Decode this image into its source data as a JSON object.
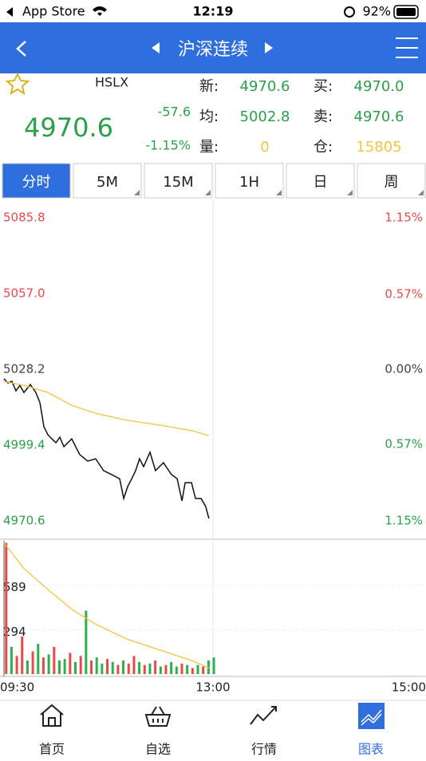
{
  "status_bar": {
    "carrier": "App Store",
    "time": "12:19",
    "battery": "92%"
  },
  "nav": {
    "title": "沪深连续"
  },
  "quote": {
    "symbol": "HSLX",
    "price": "4970.6",
    "change": "-57.6",
    "change_pct": "-1.15%",
    "fields": [
      {
        "label": "新:",
        "value": "4970.6",
        "color": "#2aa148"
      },
      {
        "label": "均:",
        "value": "5002.8",
        "color": "#2aa148"
      },
      {
        "label": "量:",
        "value": "0",
        "color": "#f3c441"
      },
      {
        "label": "买:",
        "value": "4970.0",
        "color": "#2aa148"
      },
      {
        "label": "卖:",
        "value": "4970.6",
        "color": "#2aa148"
      },
      {
        "label": "仓:",
        "value": "15805",
        "color": "#f3c441"
      }
    ]
  },
  "tabs": [
    "分时",
    "5M",
    "15M",
    "1H",
    "日",
    "周"
  ],
  "active_tab": 0,
  "chart_data": [
    {
      "type": "line",
      "xlim": [
        0,
        240
      ],
      "xticks": [
        {
          "value": 0,
          "label": "09:30"
        },
        {
          "value": 120,
          "label": "13:00"
        },
        {
          "value": 240,
          "label": "15:00"
        }
      ],
      "ylim": [
        4970.6,
        5085.8
      ],
      "yticks": [
        5085.8,
        {
          "value": 5057,
          "label": "5057.0"
        },
        5028.2,
        4999.4,
        4970.6
      ],
      "y2lim": [
        -1.15,
        1.15
      ],
      "y2ticks": [
        {
          "value": 1.15,
          "label": "1.15%"
        },
        {
          "value": 0.57,
          "label": "0.57%"
        },
        {
          "value": 0,
          "label": "0.00%"
        },
        {
          "value": -0.57,
          "label": "0.57%"
        },
        {
          "value": -1.15,
          "label": "1.15%"
        }
      ],
      "series": [
        {
          "color": "#111111",
          "x": [
            2.2,
            4.5,
            6.7,
            9.0,
            11.2,
            13.5,
            17.1,
            20.2,
            22.5,
            24.7,
            27.0,
            29.2,
            31.5,
            33.7,
            36.0,
            40.4,
            44.9,
            49.4,
            53.9,
            58.4,
            62.9,
            67.4,
            69.7,
            71.9,
            74.2,
            76.4,
            78.6,
            80.9,
            84.5,
            87.6,
            92.1,
            96.6,
            99.8,
            102.5,
            104.3,
            107.9,
            110.1,
            113.3,
            115.9,
            117.7
          ],
          "values": [
            5023.7,
            5022.1,
            5022.7,
            5019.1,
            5021.2,
            5018.5,
            5021.5,
            5018.5,
            5014.6,
            5005.5,
            5002.4,
            5000.9,
            4999.4,
            5001.5,
            4997.9,
            5000.9,
            4994.9,
            4992.4,
            4993.3,
            4988.8,
            4987.3,
            4985.7,
            4978.2,
            4982.7,
            4985.7,
            4988.8,
            4993.3,
            4990.3,
            4995.8,
            4988.8,
            4991.8,
            4987.3,
            4985.7,
            4977.3,
            4984.2,
            4984.2,
            4978.2,
            4978.2,
            4975.1,
            4970.6
          ]
        },
        {
          "color": "#f3c441",
          "x": [
            2.2,
            13.5,
            27.0,
            40.4,
            53.9,
            71.9,
            89.9,
            107.9,
            117.7
          ],
          "values": [
            5022.7,
            5021.2,
            5018.5,
            5013.6,
            5010.6,
            5007.9,
            5006.1,
            5004.0,
            5002.1
          ]
        }
      ]
    },
    {
      "type": "bar",
      "xlim": [
        0,
        240
      ],
      "ylim": [
        0,
        883
      ],
      "yticks": [
        294,
        589
      ],
      "x": [
        1,
        4,
        7,
        10,
        13,
        16,
        19,
        22,
        25,
        28,
        31,
        34,
        37,
        40,
        43,
        46,
        49,
        52,
        55,
        58,
        61,
        64,
        67,
        70,
        73,
        76,
        79,
        82,
        85,
        88,
        91,
        94,
        97,
        100,
        103,
        106,
        109,
        112,
        115,
        118
      ],
      "values": [
        870,
        180,
        120,
        250,
        90,
        150,
        200,
        110,
        130,
        180,
        90,
        100,
        140,
        80,
        120,
        420,
        90,
        110,
        70,
        100,
        80,
        60,
        90,
        70,
        120,
        80,
        60,
        70,
        90,
        50,
        60,
        80,
        50,
        70,
        60,
        40,
        60,
        50,
        90,
        110
      ],
      "colors": [
        "#e84a4a",
        "#2bb04a",
        "#e84a4a",
        "#e84a4a",
        "#2bb04a",
        "#e84a4a",
        "#2bb04a",
        "#e84a4a",
        "#2bb04a",
        "#e84a4a",
        "#2bb04a",
        "#2bb04a",
        "#e84a4a",
        "#2bb04a",
        "#e84a4a",
        "#2bb04a",
        "#e84a4a",
        "#2bb04a",
        "#2bb04a",
        "#e84a4a",
        "#2bb04a",
        "#e84a4a",
        "#2bb04a",
        "#e84a4a",
        "#e84a4a",
        "#2bb04a",
        "#e84a4a",
        "#2bb04a",
        "#e84a4a",
        "#2bb04a",
        "#e84a4a",
        "#2bb04a",
        "#2bb04a",
        "#e84a4a",
        "#2bb04a",
        "#e84a4a",
        "#2bb04a",
        "#e84a4a",
        "#2bb04a",
        "#2bb04a"
      ],
      "line": {
        "color": "#f3c441",
        "x": [
          2.2,
          13.5,
          27.0,
          40.4,
          53.9,
          71.9,
          89.9,
          107.9,
          117.7
        ],
        "values": [
          870,
          700,
          560,
          430,
          330,
          230,
          160,
          90,
          40
        ]
      }
    }
  ],
  "bottom_tabs": [
    "首页",
    "自选",
    "行情",
    "图表"
  ],
  "active_bottom": 3
}
